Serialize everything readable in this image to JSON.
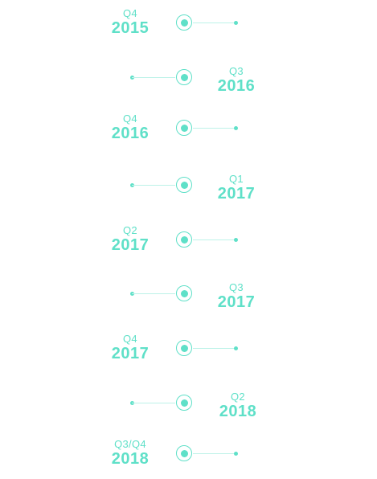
{
  "timeline": {
    "accent_color": "#5fe0c8",
    "line_color": "#bdf2e8",
    "milestones": [
      {
        "quarter": "Q4",
        "year": "2015",
        "side": "left"
      },
      {
        "quarter": "Q3",
        "year": "2016",
        "side": "right"
      },
      {
        "quarter": "Q4",
        "year": "2016",
        "side": "left"
      },
      {
        "quarter": "Q1",
        "year": "2017",
        "side": "right"
      },
      {
        "quarter": "Q2",
        "year": "2017",
        "side": "left"
      },
      {
        "quarter": "Q3",
        "year": "2017",
        "side": "right"
      },
      {
        "quarter": "Q4",
        "year": "2017",
        "side": "left"
      },
      {
        "quarter": "Q2",
        "year": "2018",
        "side": "right"
      },
      {
        "quarter": "Q3/Q4",
        "year": "2018",
        "side": "left"
      }
    ]
  }
}
